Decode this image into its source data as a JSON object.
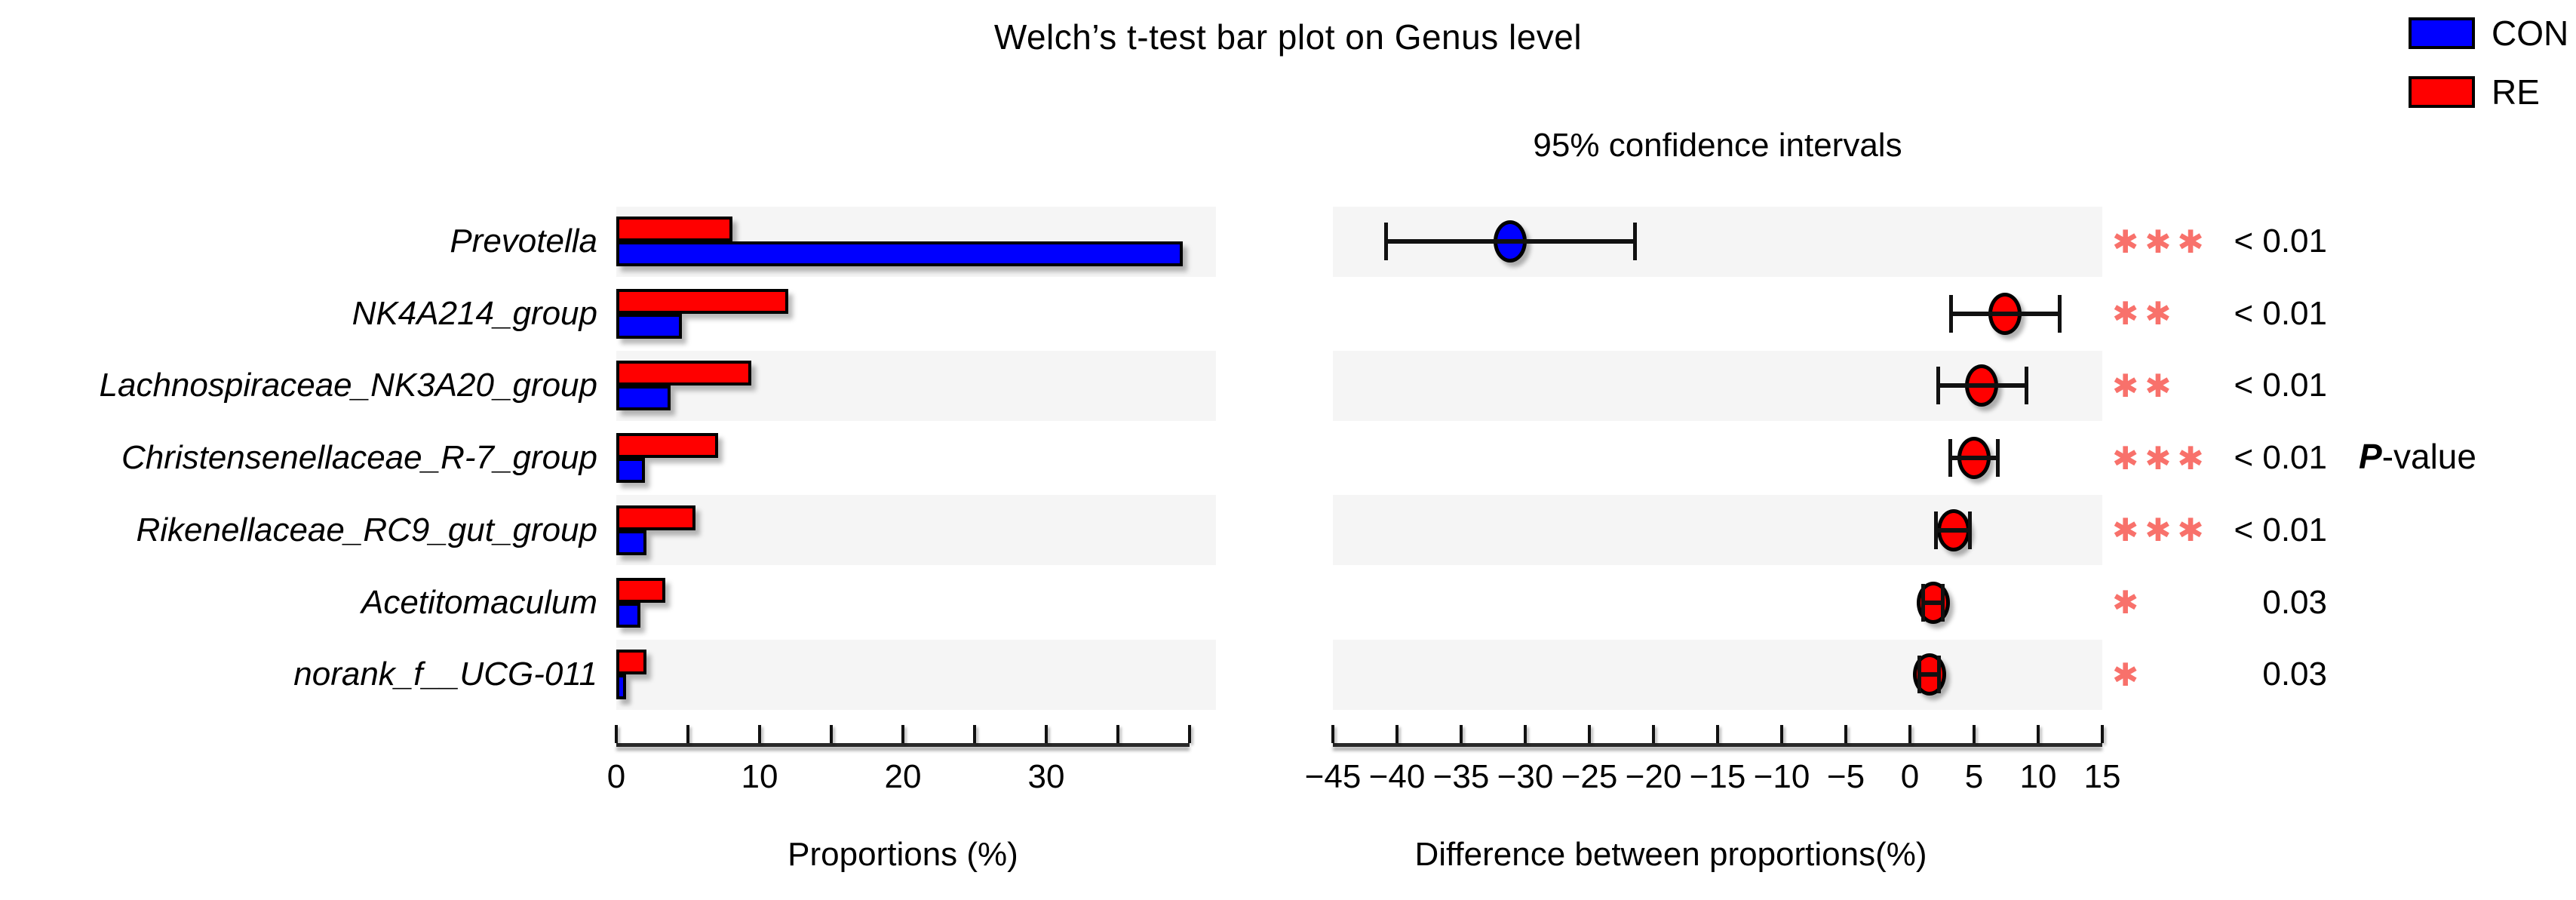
{
  "title": "Welch’s t-test bar plot on Genus level",
  "legend": {
    "items": [
      {
        "label": "CON",
        "color": "#0000ff"
      },
      {
        "label": "RE",
        "color": "#ff0000"
      }
    ]
  },
  "pvalue_header": {
    "italic_part": "P",
    "rest_part": "-value"
  },
  "styles": {
    "stripe_color": "#f5f5f5",
    "star_color": "#f8716b",
    "con_color": "#0000ff",
    "re_color": "#ff0000"
  },
  "chart_data": {
    "type": "bar+interval",
    "title": "Welch’s t-test bar plot on Genus level",
    "categories": [
      "Prevotella",
      "NK4A214_group",
      "Lachnospiraceae_NK3A20_group",
      "Christensenellaceae_R-7_group",
      "Rikenellaceae_RC9_gut_group",
      "Acetitomaculum",
      "norank_f__UCG-011"
    ],
    "bar_panel": {
      "xlabel": "Proportions (%)",
      "xlim": [
        0,
        40
      ],
      "tick_values": [
        0,
        5,
        10,
        15,
        20,
        25,
        30,
        35,
        40
      ],
      "tick_labels": [
        "0",
        "",
        "10",
        "",
        "20",
        "",
        "30",
        "",
        ""
      ],
      "grid": false,
      "series": [
        {
          "name": "RE",
          "color": "#ff0000",
          "values": [
            8.1,
            12.0,
            9.4,
            7.1,
            5.5,
            3.4,
            2.1
          ]
        },
        {
          "name": "CON",
          "color": "#0000ff",
          "values": [
            39.5,
            4.6,
            3.8,
            2.0,
            2.1,
            1.7,
            0.7
          ]
        }
      ]
    },
    "interval_panel": {
      "subtitle": "95% confidence intervals",
      "xlabel": "Difference between proportions(%)",
      "xlim": [
        -45,
        15
      ],
      "tick_values": [
        -45,
        -40,
        -35,
        -30,
        -25,
        -20,
        -15,
        -10,
        -5,
        0,
        5,
        10,
        15
      ],
      "tick_labels": [
        "−45",
        "−40",
        "−35",
        "−30",
        "−25",
        "−20",
        "−15",
        "−10",
        "−5",
        "0",
        "5",
        "10",
        "15"
      ],
      "means": [
        -31.2,
        7.4,
        5.6,
        5.0,
        3.4,
        1.8,
        1.5
      ],
      "ci_low": [
        -40.9,
        3.2,
        2.2,
        3.1,
        2.0,
        1.0,
        0.7
      ],
      "ci_high": [
        -21.4,
        11.7,
        9.1,
        6.9,
        4.7,
        2.6,
        2.3
      ],
      "marker_colors": [
        "#0000ff",
        "#ff0000",
        "#ff0000",
        "#ff0000",
        "#ff0000",
        "#ff0000",
        "#ff0000"
      ]
    },
    "significance": {
      "stars": [
        "***",
        "**",
        "**",
        "***",
        "***",
        "*",
        "*"
      ],
      "pvalues": [
        "< 0.01",
        "< 0.01",
        "< 0.01",
        "< 0.01",
        "< 0.01",
        "0.03",
        "0.03"
      ]
    },
    "legend_entries": [
      "CON",
      "RE"
    ]
  }
}
